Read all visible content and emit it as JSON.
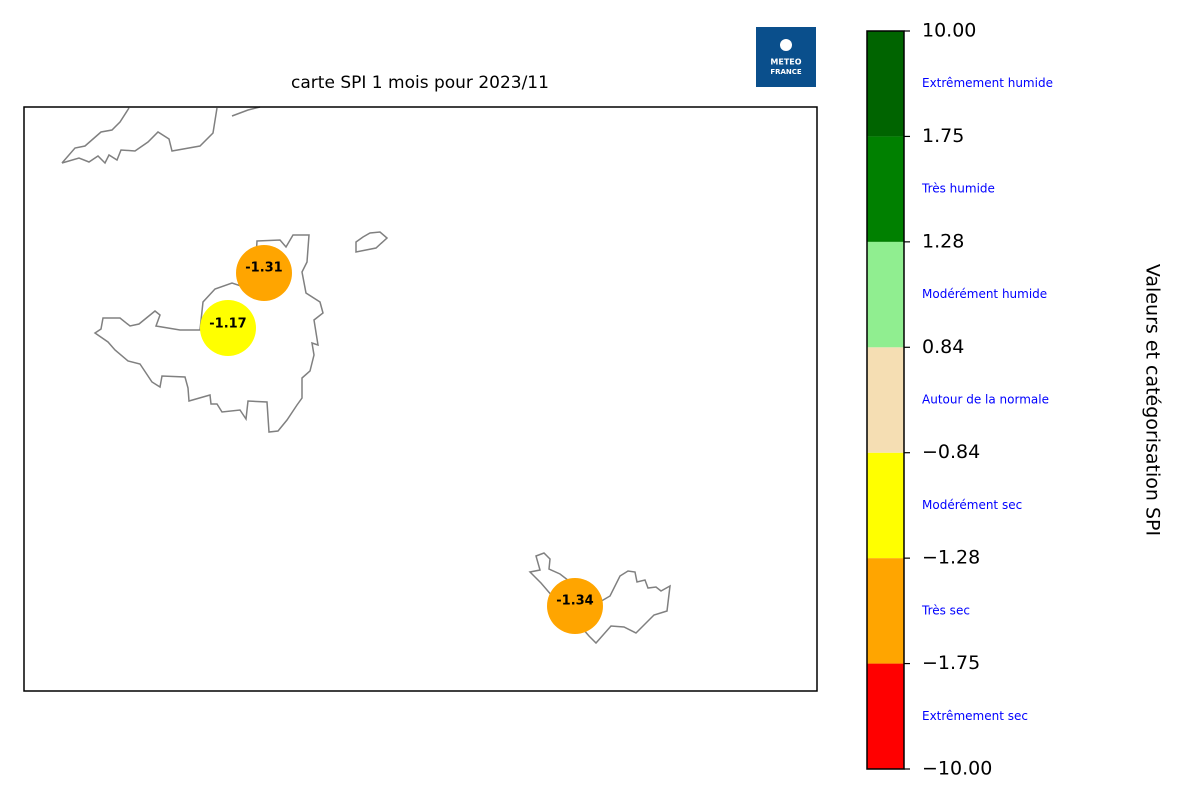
{
  "map": {
    "title": "carte SPI 1 mois pour 2023/11",
    "logo": [
      "METEO",
      "FRANCE"
    ],
    "stations": [
      {
        "value": -1.31
      },
      {
        "value": -1.17
      },
      {
        "value": -1.34
      }
    ]
  },
  "colorbar": {
    "label": "Valeurs et catégorisation SPI",
    "ticks": [
      {
        "value": -10,
        "label": "−10.00"
      },
      {
        "value": -1.75,
        "label": "−1.75"
      },
      {
        "value": -1.28,
        "label": "−1.28"
      },
      {
        "value": -0.84,
        "label": "−0.84"
      },
      {
        "value": 0.84,
        "label": "0.84"
      },
      {
        "value": 1.28,
        "label": "1.28"
      },
      {
        "value": 1.75,
        "label": "1.75"
      },
      {
        "value": 10,
        "label": "10.00"
      }
    ],
    "categories": [
      {
        "name": "Extrêmement sec",
        "color": "#ff0000"
      },
      {
        "name": "Très sec",
        "color": "#ffa500"
      },
      {
        "name": "Modérément sec",
        "color": "#ffff00"
      },
      {
        "name": "Autour de la normale",
        "color": "#f5deb3"
      },
      {
        "name": "Modérément humide",
        "color": "#90ee90"
      },
      {
        "name": "Très humide",
        "color": "#008000"
      },
      {
        "name": "Extrêmement humide",
        "color": "#006400"
      }
    ]
  }
}
